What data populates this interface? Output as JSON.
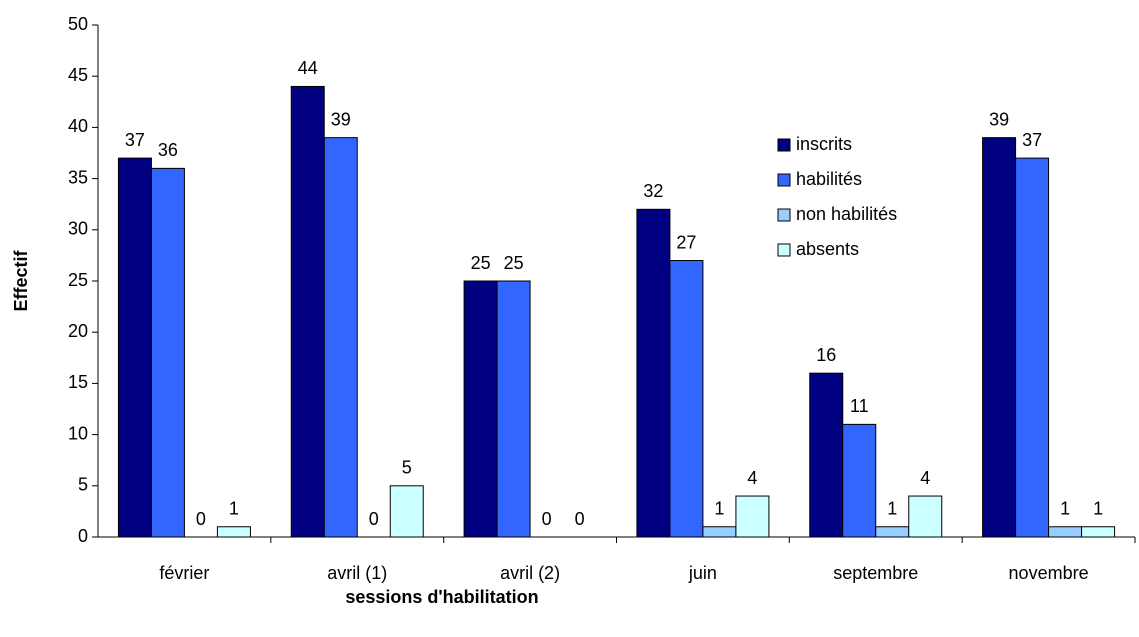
{
  "chart_data": {
    "type": "bar",
    "x_label": "sessions d'habilitation",
    "y_label": "Effectif",
    "categories": [
      "février",
      "avril (1)",
      "avril (2)",
      "juin",
      "septembre",
      "novembre"
    ],
    "series": [
      {
        "name": "inscrits",
        "color": "#000080",
        "values": [
          37,
          44,
          25,
          32,
          16,
          39
        ]
      },
      {
        "name": "habilités",
        "color": "#3366ff",
        "values": [
          36,
          39,
          25,
          27,
          11,
          37
        ]
      },
      {
        "name": "non habilités",
        "color": "#99ccff",
        "values": [
          0,
          0,
          0,
          1,
          1,
          1
        ]
      },
      {
        "name": "absents",
        "color": "#ccffff",
        "values": [
          1,
          5,
          0,
          4,
          4,
          1
        ]
      }
    ],
    "ylim": [
      0,
      50
    ],
    "yticks": [
      0,
      5,
      10,
      15,
      20,
      25,
      30,
      35,
      40,
      45,
      50
    ],
    "legend": "upper-right",
    "grid": false
  }
}
